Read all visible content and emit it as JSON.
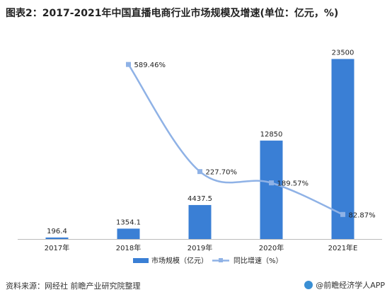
{
  "title": "图表2：2017-2021年中国直播电商行业市场规模及增速(单位：亿元，%)",
  "chart_data": {
    "type": "bar+line",
    "categories": [
      "2017年",
      "2018年",
      "2019年",
      "2020年",
      "2021年E"
    ],
    "series": [
      {
        "name": "市场规模（亿元）",
        "type": "bar",
        "values": [
          196.4,
          1354.1,
          4437.5,
          12850,
          23500
        ],
        "labels": [
          "196.4",
          "1354.1",
          "4437.5",
          "12850",
          "23500"
        ],
        "color": "#3a7fd5"
      },
      {
        "name": "同比增速（%）",
        "type": "line",
        "values": [
          null,
          589.46,
          227.7,
          189.57,
          82.87
        ],
        "labels": [
          "",
          "589.46%",
          "227.70%",
          "189.57%",
          "82.87%"
        ],
        "color": "#8fb2e6"
      }
    ],
    "bar_ylim": [
      0,
      24000
    ],
    "line_ylim": [
      0,
      640
    ],
    "grid": false,
    "legend": "bottom"
  },
  "footer": {
    "source": "资料来源：网经社 前瞻产业研究院整理",
    "brand": "@前瞻经济学人APP"
  }
}
